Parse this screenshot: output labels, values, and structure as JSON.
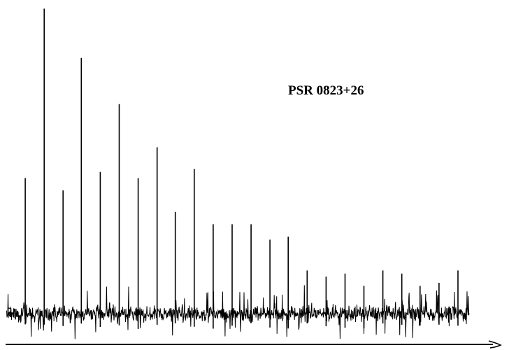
{
  "chart_data": {
    "type": "line",
    "title": "PSR 0823+26",
    "xlabel": "",
    "ylabel": "",
    "grid": false,
    "legend": "none",
    "line_color": "#000000",
    "x_range": [
      0,
      660
    ],
    "y_range": [
      -100,
      1000
    ],
    "noise_level": 40,
    "harmonics": {
      "name": "",
      "x": [
        27,
        54,
        81,
        107,
        134,
        161,
        188,
        215,
        241,
        268,
        295,
        322,
        349,
        376,
        402,
        429,
        456,
        483,
        510,
        537,
        564,
        590,
        617,
        644
      ],
      "values": [
        440,
        990,
        400,
        830,
        460,
        680,
        440,
        540,
        330,
        470,
        290,
        290,
        290,
        240,
        250,
        140,
        120,
        130,
        90,
        140,
        130,
        90,
        100,
        140
      ]
    }
  }
}
